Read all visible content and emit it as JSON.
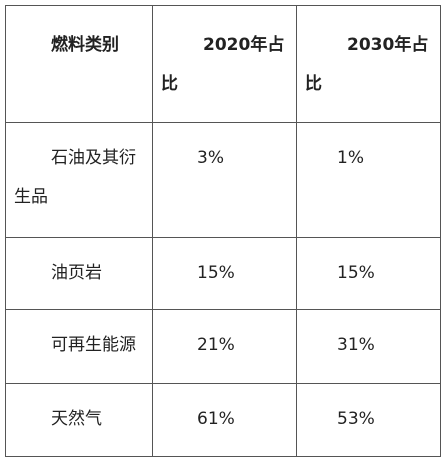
{
  "table": {
    "headers": [
      "燃料类别",
      "2020年占比",
      "2030年占比"
    ],
    "rows": [
      {
        "fuel": "石油及其衍生品",
        "share_2020": "3%",
        "share_2030": "1%"
      },
      {
        "fuel": "油页岩",
        "share_2020": "15%",
        "share_2030": "15%"
      },
      {
        "fuel": "可再生能源",
        "share_2020": "21%",
        "share_2030": "31%"
      },
      {
        "fuel": "天然气",
        "share_2020": "61%",
        "share_2030": "53%"
      }
    ]
  },
  "colors": {
    "border": "#555555",
    "text": "#222222",
    "background": "#ffffff"
  }
}
